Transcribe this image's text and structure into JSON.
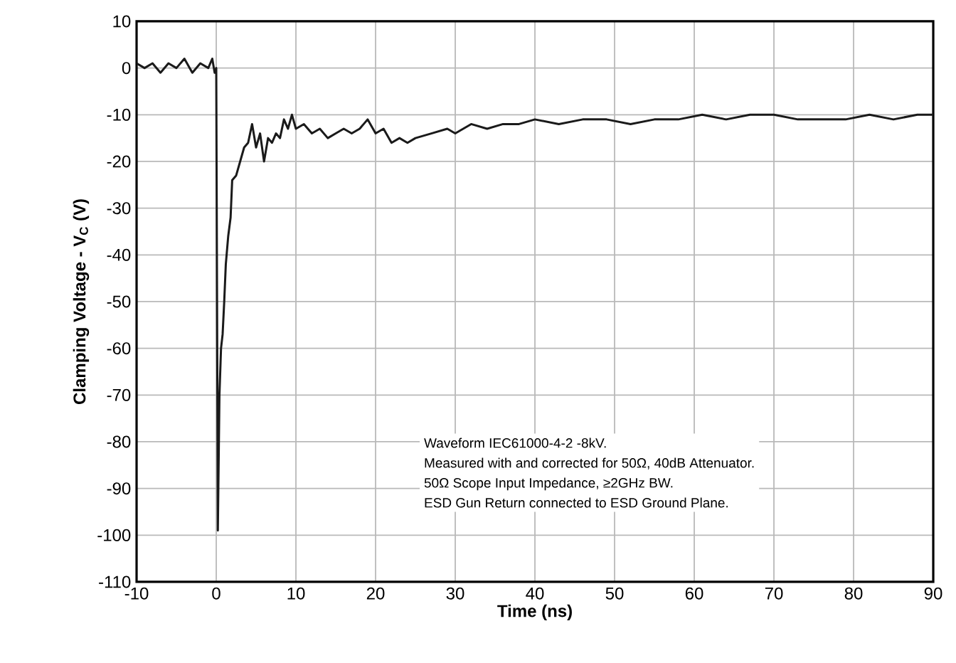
{
  "chart_data": {
    "type": "line",
    "xlabel": "Time (ns)",
    "ylabel": "Clamping Voltage  - V$_{C}$ (V)",
    "xlim": [
      -10,
      90
    ],
    "ylim": [
      -110,
      10
    ],
    "xticks": [
      -10,
      0,
      10,
      20,
      30,
      40,
      50,
      60,
      70,
      80,
      90
    ],
    "yticks": [
      -110,
      -100,
      -90,
      -80,
      -70,
      -60,
      -50,
      -40,
      -30,
      -20,
      -10,
      0,
      10
    ],
    "grid": true,
    "line_style": "solid",
    "annotations": [
      "Waveform IEC61000-4-2 -8kV.",
      "Measured with and corrected for 50Ω, 40dB Attenuator.",
      "50Ω Scope Input Impedance, ≥2GHz BW.",
      "ESD Gun Return connected to ESD Ground Plane."
    ],
    "series": [
      {
        "color": "#1a1a1a",
        "x": [
          -10,
          -9,
          -8,
          -7,
          -6,
          -5,
          -4,
          -3,
          -2,
          -1,
          -0.5,
          -0.2,
          0,
          0.2,
          0.4,
          0.6,
          0.8,
          1.0,
          1.2,
          1.5,
          1.8,
          2.0,
          2.5,
          3.0,
          3.5,
          4.0,
          4.5,
          5.0,
          5.5,
          6.0,
          6.5,
          7.0,
          7.5,
          8.0,
          8.5,
          9.0,
          9.5,
          10,
          11,
          12,
          13,
          14,
          15,
          16,
          17,
          18,
          19,
          20,
          21,
          22,
          23,
          24,
          25,
          27,
          29,
          30,
          32,
          34,
          36,
          38,
          40,
          43,
          46,
          49,
          52,
          55,
          58,
          61,
          64,
          67,
          70,
          73,
          76,
          79,
          82,
          85,
          88,
          90
        ],
        "values": [
          1,
          0,
          1,
          -1,
          1,
          0,
          2,
          -1,
          1,
          0,
          2,
          -1,
          0,
          -99,
          -70,
          -60,
          -57,
          -50,
          -42,
          -36,
          -32,
          -24,
          -23,
          -20,
          -17,
          -16,
          -12,
          -17,
          -14,
          -20,
          -15,
          -16,
          -14,
          -15,
          -11,
          -13,
          -10,
          -13,
          -12,
          -14,
          -13,
          -15,
          -14,
          -13,
          -14,
          -13,
          -11,
          -14,
          -13,
          -16,
          -15,
          -16,
          -15,
          -14,
          -13,
          -14,
          -12,
          -13,
          -12,
          -12,
          -11,
          -12,
          -11,
          -11,
          -12,
          -11,
          -11,
          -10,
          -11,
          -10,
          -10,
          -11,
          -11,
          -11,
          -10,
          -11,
          -10,
          -10
        ]
      }
    ]
  }
}
